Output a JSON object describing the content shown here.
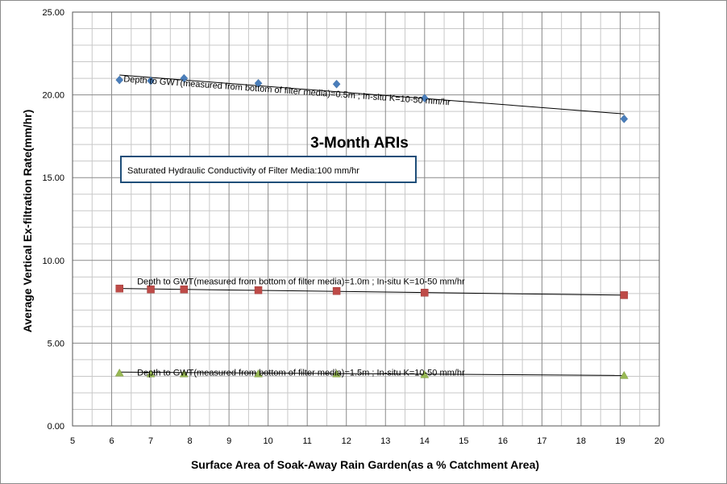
{
  "chart_data": {
    "type": "scatter",
    "title": "3-Month ARIs",
    "xlabel": "Surface Area of Soak-Away Rain Garden(as a %  Catchment Area)",
    "ylabel": "Average Vertical Ex-filtration Rate(mm/hr)",
    "xlim": [
      5,
      20
    ],
    "ylim": [
      0,
      25
    ],
    "x_ticks": [
      "5",
      "6",
      "7",
      "8",
      "9",
      "10",
      "11",
      "12",
      "13",
      "14",
      "15",
      "16",
      "17",
      "18",
      "19",
      "20"
    ],
    "y_ticks": [
      "0.00",
      "5.00",
      "10.00",
      "15.00",
      "20.00",
      "25.00"
    ],
    "grid": true,
    "info_box": "Saturated Hydraulic Conductivity of Filter Media:100 mm/hr",
    "series": [
      {
        "label": "Depth to GWT(measured from bottom of filter media)=0.5m ; In-situ K=10-50 mm/hr",
        "marker": "diamond",
        "color": "#4a7ebb",
        "x": [
          6.2,
          7.0,
          7.85,
          9.75,
          11.75,
          14.0,
          19.1
        ],
        "y": [
          20.9,
          20.85,
          21.0,
          20.7,
          20.65,
          19.8,
          18.55
        ],
        "trend": {
          "x": [
            6.2,
            19.1
          ],
          "y": [
            21.2,
            18.85
          ]
        }
      },
      {
        "label": "Depth to GWT(measured from bottom of filter media)=1.0m ; In-situ K=10-50 mm/hr",
        "marker": "square",
        "color": "#be4b48",
        "x": [
          6.2,
          7.0,
          7.85,
          9.75,
          11.75,
          14.0,
          19.1
        ],
        "y": [
          8.3,
          8.25,
          8.25,
          8.2,
          8.15,
          8.05,
          7.9
        ],
        "trend": {
          "x": [
            6.2,
            19.1
          ],
          "y": [
            8.3,
            7.9
          ]
        }
      },
      {
        "label": "Depth to GWT(measured from bottom of filter media)=1.5m ; In-situ K=10-50 mm/hr",
        "marker": "triangle",
        "color": "#98b954",
        "x": [
          6.2,
          7.0,
          7.85,
          9.75,
          11.75,
          14.0,
          19.1
        ],
        "y": [
          3.2,
          3.15,
          3.15,
          3.15,
          3.15,
          3.1,
          3.05
        ],
        "trend": {
          "x": [
            6.2,
            19.1
          ],
          "y": [
            3.25,
            3.05
          ]
        }
      }
    ]
  }
}
